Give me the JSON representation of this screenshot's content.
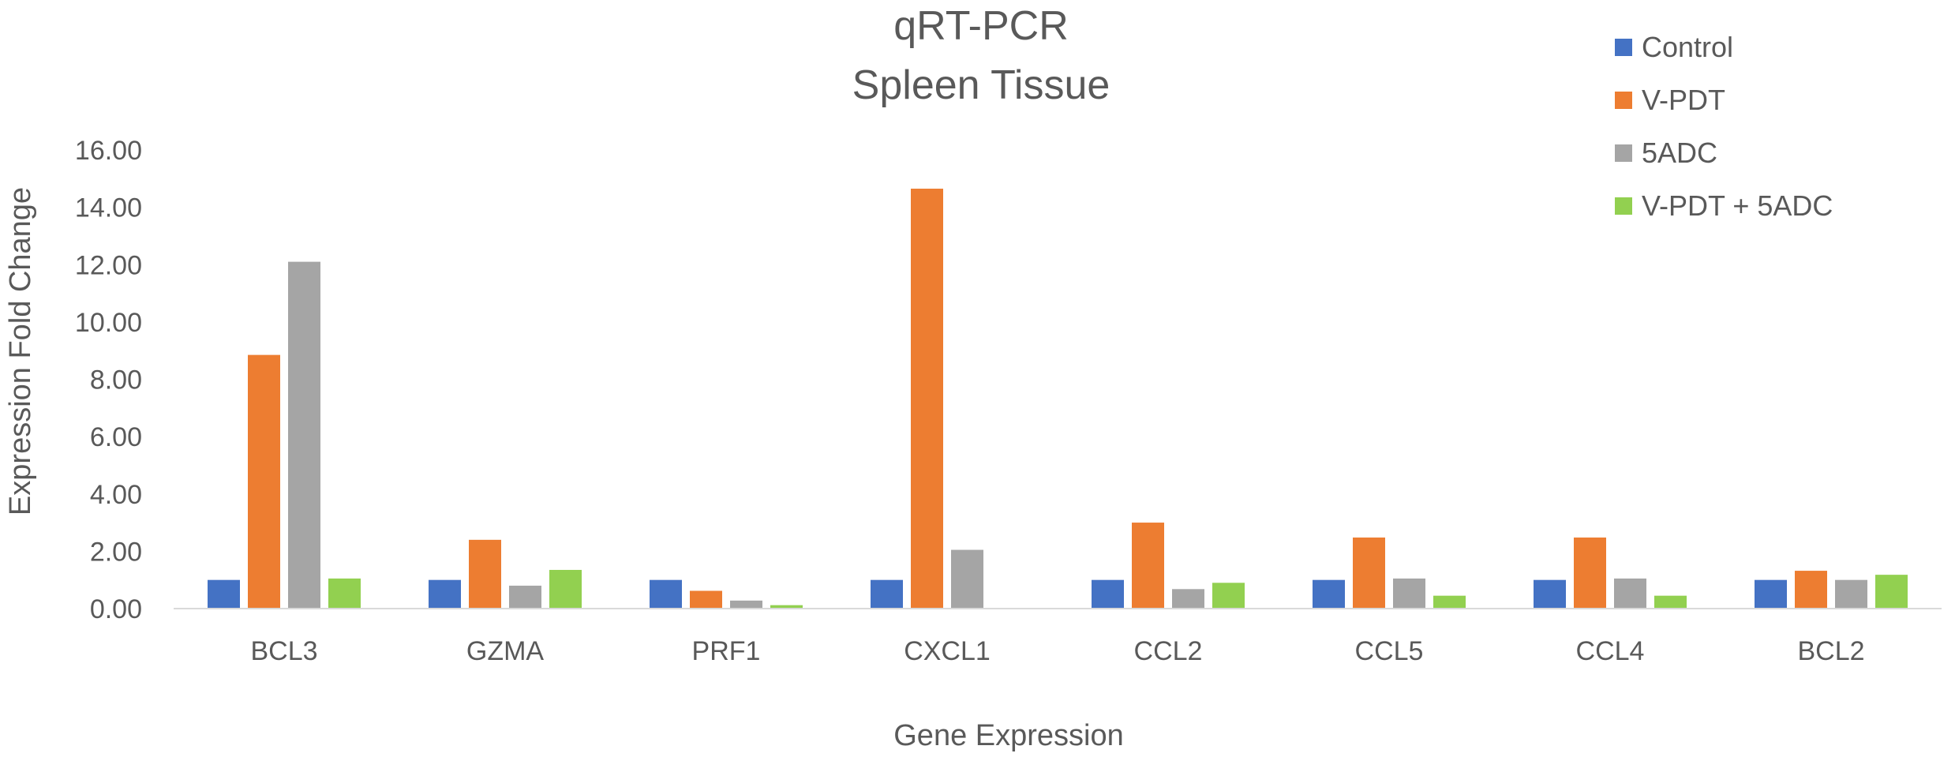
{
  "chart_data": {
    "type": "bar",
    "title": [
      "qRT-PCR",
      "Spleen Tissue"
    ],
    "xlabel": "Gene Expression",
    "ylabel": "Expression Fold Change",
    "categories": [
      "BCL3",
      "GZMA",
      "PRF1",
      "CXCL1",
      "CCL2",
      "CCL5",
      "CCL4",
      "BCL2"
    ],
    "ylim": [
      0,
      16
    ],
    "yticks": [
      "0.00",
      "2.00",
      "4.00",
      "6.00",
      "8.00",
      "10.00",
      "12.00",
      "14.00",
      "16.00"
    ],
    "grid": false,
    "legend_position": "top-right",
    "series": [
      {
        "name": "Control",
        "color": "#4472C4",
        "values": [
          1.0,
          1.0,
          1.0,
          1.0,
          1.0,
          1.0,
          1.0,
          1.0
        ]
      },
      {
        "name": "V-PDT",
        "color": "#ED7D31",
        "values": [
          8.85,
          2.4,
          0.62,
          14.65,
          3.0,
          2.48,
          2.48,
          1.32
        ]
      },
      {
        "name": "5ADC",
        "color": "#A5A5A5",
        "values": [
          12.1,
          0.8,
          0.28,
          2.05,
          0.68,
          1.05,
          1.05,
          1.0
        ]
      },
      {
        "name": "V-PDT + 5ADC",
        "color": "#92D050",
        "values": [
          1.05,
          1.35,
          0.12,
          0.0,
          0.9,
          0.45,
          0.45,
          1.18
        ]
      }
    ]
  }
}
